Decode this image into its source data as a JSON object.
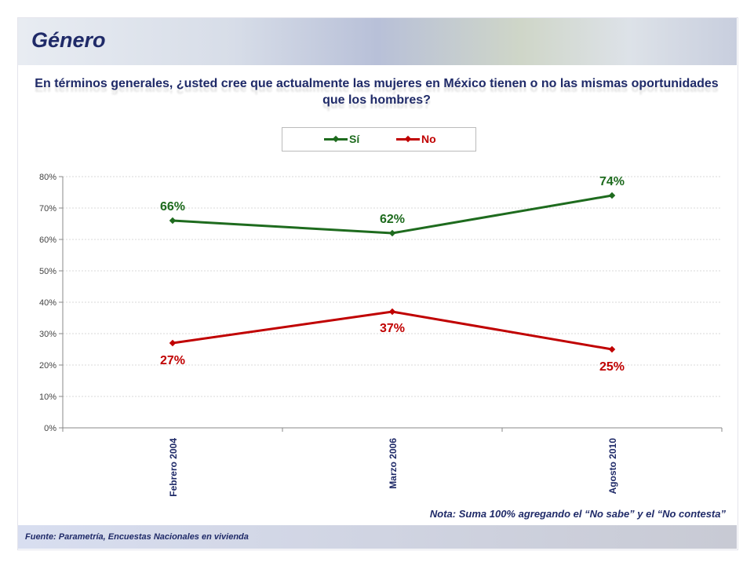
{
  "header": {
    "title": "Género"
  },
  "note": "Nota: Suma 100% agregando el “No sabe” y el “No contesta”",
  "source": "Fuente: Parametría, Encuestas Nacionales en vivienda",
  "chart_data": {
    "type": "line",
    "title": "En términos generales, ¿usted cree que actualmente las mujeres en México tienen o no las mismas oportunidades que los hombres?",
    "categories": [
      "Febrero 2004",
      "Marzo 2006",
      "Agosto 2010"
    ],
    "series": [
      {
        "name": "Sí",
        "values": [
          66,
          62,
          74
        ],
        "labels": [
          "66%",
          "62%",
          "74%"
        ],
        "color": "#1e6b1e"
      },
      {
        "name": "No",
        "values": [
          27,
          37,
          25
        ],
        "labels": [
          "27%",
          "37%",
          "25%"
        ],
        "color": "#c00000"
      }
    ],
    "ylim": [
      0,
      80
    ],
    "yticks": [
      "0%",
      "10%",
      "20%",
      "30%",
      "40%",
      "50%",
      "60%",
      "70%",
      "80%"
    ],
    "grid": true,
    "legend": "top-center"
  }
}
